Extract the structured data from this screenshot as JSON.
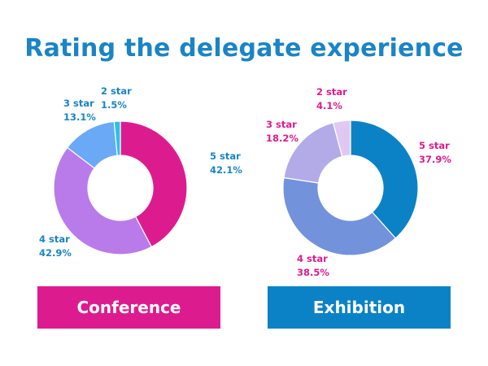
{
  "title": "Rating the delegate experience",
  "chart_data": [
    {
      "type": "pie",
      "name": "Conference",
      "categories": [
        "5 star",
        "4 star",
        "3 star",
        "2 star"
      ],
      "values": [
        42.1,
        42.9,
        13.1,
        1.5
      ],
      "value_labels": [
        "42.1%",
        "42.9%",
        "13.1%",
        "1.5%"
      ],
      "colors": [
        "#dc1c8e",
        "#b97bea",
        "#6aa9f5",
        "#25c4e8"
      ],
      "label_color": "#1b84c4"
    },
    {
      "type": "pie",
      "name": "Exhibition",
      "categories": [
        "5 star",
        "4 star",
        "3 star",
        "2 star"
      ],
      "values": [
        37.9,
        38.5,
        18.2,
        4.1
      ],
      "value_labels": [
        "37.9%",
        "38.5%",
        "18.2%",
        "4.1%"
      ],
      "colors": [
        "#0c82c6",
        "#7292dc",
        "#b3abe8",
        "#e1c8f2",
        "#fde8f2"
      ],
      "label_color": "#dc1c8e"
    }
  ],
  "banners": [
    {
      "label": "Conference",
      "color": "#dc1c8e"
    },
    {
      "label": "Exhibition",
      "color": "#0c82c6"
    }
  ]
}
